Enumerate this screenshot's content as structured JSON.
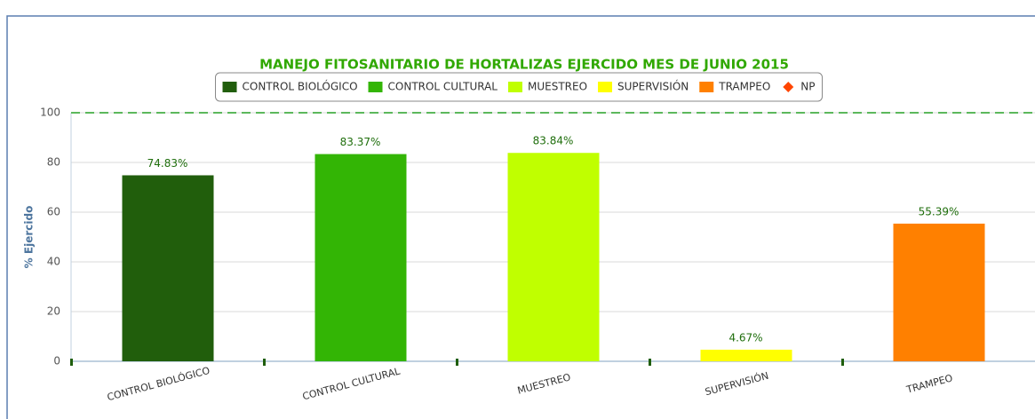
{
  "chart_data": {
    "type": "bar",
    "title": "MANEJO FITOSANITARIO DE HORTALIZAS EJERCIDO MES DE JUNIO 2015",
    "y_label": "% Ejercido",
    "categories": [
      "CONTROL BIOLÓGICO",
      "CONTROL CULTURAL",
      "MUESTREO",
      "SUPERVISIÓN",
      "TRAMPEO"
    ],
    "series": [
      {
        "name": "CONTROL BIOLÓGICO",
        "color": "#215e0c",
        "values": [
          74.83,
          null,
          null,
          null,
          null
        ],
        "value_labels": [
          "74.83%",
          null,
          null,
          null,
          null
        ]
      },
      {
        "name": "CONTROL CULTURAL",
        "color": "#33b505",
        "values": [
          null,
          83.37,
          null,
          null,
          null
        ],
        "value_labels": [
          null,
          "83.37%",
          null,
          null,
          null
        ]
      },
      {
        "name": "MUESTREO",
        "color": "#c0ff00",
        "values": [
          null,
          null,
          83.84,
          null,
          null
        ],
        "value_labels": [
          null,
          null,
          "83.84%",
          null,
          null
        ]
      },
      {
        "name": "SUPERVISIÓN",
        "color": "#ffff00",
        "values": [
          null,
          null,
          null,
          4.67,
          null
        ],
        "value_labels": [
          null,
          null,
          null,
          "4.67%",
          null
        ]
      },
      {
        "name": "TRAMPEO",
        "color": "#ff8000",
        "values": [
          null,
          null,
          null,
          null,
          55.39
        ],
        "value_labels": [
          null,
          null,
          null,
          null,
          "55.39%"
        ]
      },
      {
        "name": "NP",
        "color": "#ff4500",
        "marker": "diamond",
        "values": [
          null,
          null,
          null,
          null,
          null
        ]
      }
    ],
    "ylim": [
      0,
      100
    ],
    "yticks": [
      0,
      20,
      40,
      60,
      80,
      100
    ],
    "grid": true,
    "plot_line": {
      "value": 100,
      "color": "#5cb85c"
    },
    "legend": "top"
  }
}
